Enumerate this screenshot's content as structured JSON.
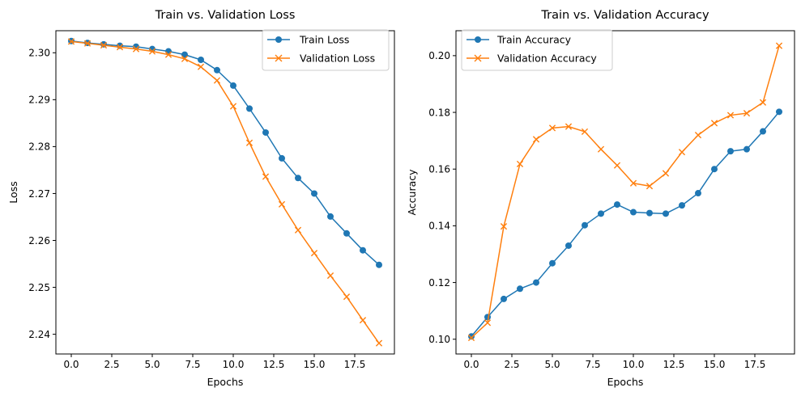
{
  "chart_data": [
    {
      "type": "line",
      "title": "Train vs. Validation Loss",
      "xlabel": "Epochs",
      "ylabel": "Loss",
      "xlim": [
        -0.95,
        19.95
      ],
      "ylim": [
        2.2358,
        2.3047
      ],
      "xticks": [
        0,
        2.5,
        5,
        7.5,
        10,
        12.5,
        15,
        17.5
      ],
      "xtick_labels": [
        "0.0",
        "2.5",
        "5.0",
        "7.5",
        "10.0",
        "12.5",
        "15.0",
        "17.5"
      ],
      "yticks": [
        2.24,
        2.25,
        2.26,
        2.27,
        2.28,
        2.29,
        2.3
      ],
      "ytick_labels": [
        "2.24",
        "2.25",
        "2.26",
        "2.27",
        "2.28",
        "2.29",
        "2.30"
      ],
      "grid": false,
      "legend": "top-right",
      "x": [
        0,
        1,
        2,
        3,
        4,
        5,
        6,
        7,
        8,
        9,
        10,
        11,
        12,
        13,
        14,
        15,
        16,
        17,
        18,
        19
      ],
      "series": [
        {
          "name": "Train Loss",
          "color": "#1f77b4",
          "marker": "circle",
          "values": [
            2.3025,
            2.3021,
            2.3018,
            2.3015,
            2.3013,
            2.3008,
            2.3003,
            2.2996,
            2.2985,
            2.2963,
            2.293,
            2.2881,
            2.283,
            2.2775,
            2.2733,
            2.27,
            2.2651,
            2.2615,
            2.2579,
            2.2548
          ]
        },
        {
          "name": "Validation Loss",
          "color": "#ff7f0e",
          "marker": "x",
          "values": [
            2.3024,
            2.302,
            2.3016,
            2.3012,
            2.3008,
            2.3003,
            2.2996,
            2.2987,
            2.297,
            2.2941,
            2.2886,
            2.2808,
            2.2736,
            2.2677,
            2.2622,
            2.2573,
            2.2525,
            2.248,
            2.243,
            2.2381
          ]
        }
      ]
    },
    {
      "type": "line",
      "title": "Train vs. Validation Accuracy",
      "xlabel": "Epochs",
      "ylabel": "Accuracy",
      "xlim": [
        -0.95,
        19.95
      ],
      "ylim": [
        0.0948,
        0.2088
      ],
      "xticks": [
        0,
        2.5,
        5,
        7.5,
        10,
        12.5,
        15,
        17.5
      ],
      "xtick_labels": [
        "0.0",
        "2.5",
        "5.0",
        "7.5",
        "10.0",
        "12.5",
        "15.0",
        "17.5"
      ],
      "yticks": [
        0.1,
        0.12,
        0.14,
        0.16,
        0.18,
        0.2
      ],
      "ytick_labels": [
        "0.10",
        "0.12",
        "0.14",
        "0.16",
        "0.18",
        "0.20"
      ],
      "grid": false,
      "legend": "top-left",
      "x": [
        0,
        1,
        2,
        3,
        4,
        5,
        6,
        7,
        8,
        9,
        10,
        11,
        12,
        13,
        14,
        15,
        16,
        17,
        18,
        19
      ],
      "series": [
        {
          "name": "Train Accuracy",
          "color": "#1f77b4",
          "marker": "circle",
          "values": [
            0.101,
            0.1078,
            0.1142,
            0.1178,
            0.12,
            0.1268,
            0.133,
            0.1402,
            0.1443,
            0.1475,
            0.1448,
            0.1445,
            0.1443,
            0.1472,
            0.1515,
            0.16,
            0.1663,
            0.167,
            0.1733,
            0.1802
          ]
        },
        {
          "name": "Validation Accuracy",
          "color": "#ff7f0e",
          "marker": "x",
          "values": [
            0.1005,
            0.1058,
            0.1398,
            0.1618,
            0.1705,
            0.1745,
            0.175,
            0.1732,
            0.167,
            0.1613,
            0.155,
            0.154,
            0.1585,
            0.166,
            0.172,
            0.1762,
            0.179,
            0.1797,
            0.1835,
            0.2035
          ]
        }
      ]
    }
  ]
}
